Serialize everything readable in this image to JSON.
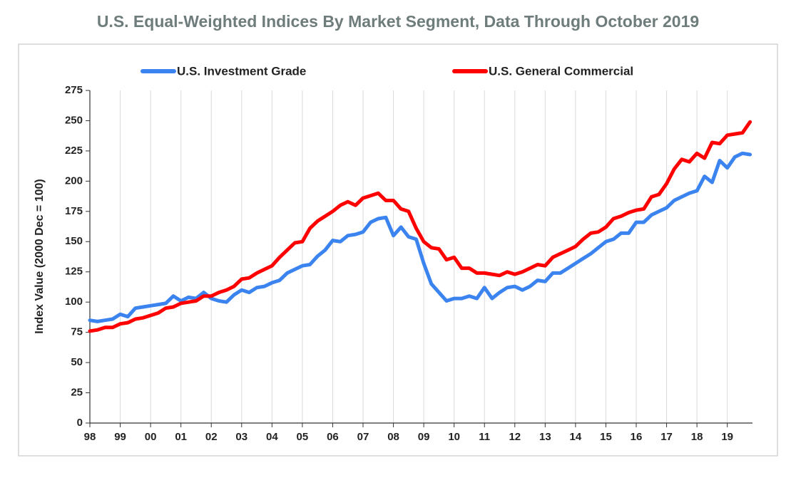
{
  "chart_data": {
    "type": "line",
    "title": "U.S. Equal-Weighted Indices By Market Segment, Data Through October 2019",
    "y_label": "Index Value (2000 Dec = 100)",
    "x": [
      1998,
      1998.25,
      1998.5,
      1998.75,
      1999,
      1999.25,
      1999.5,
      1999.75,
      2000,
      2000.25,
      2000.5,
      2000.75,
      2001,
      2001.25,
      2001.5,
      2001.75,
      2002,
      2002.25,
      2002.5,
      2002.75,
      2003,
      2003.25,
      2003.5,
      2003.75,
      2004,
      2004.25,
      2004.5,
      2004.75,
      2005,
      2005.25,
      2005.5,
      2005.75,
      2006,
      2006.25,
      2006.5,
      2006.75,
      2007,
      2007.25,
      2007.5,
      2007.75,
      2008,
      2008.25,
      2008.5,
      2008.75,
      2009,
      2009.25,
      2009.5,
      2009.75,
      2010,
      2010.25,
      2010.5,
      2010.75,
      2011,
      2011.25,
      2011.5,
      2011.75,
      2012,
      2012.25,
      2012.5,
      2012.75,
      2013,
      2013.25,
      2013.5,
      2013.75,
      2014,
      2014.25,
      2014.5,
      2014.75,
      2015,
      2015.25,
      2015.5,
      2015.75,
      2016,
      2016.25,
      2016.5,
      2016.75,
      2017,
      2017.25,
      2017.5,
      2017.75,
      2018,
      2018.25,
      2018.5,
      2018.75,
      2019,
      2019.25,
      2019.5,
      2019.75
    ],
    "series": [
      {
        "name": "U.S. Investment Grade",
        "color": "#3b84f0",
        "values": [
          85,
          84,
          85,
          86,
          90,
          88,
          95,
          96,
          97,
          98,
          99,
          105,
          101,
          104,
          103,
          108,
          103,
          101,
          100,
          106,
          110,
          108,
          112,
          113,
          116,
          118,
          124,
          127,
          130,
          131,
          138,
          143,
          151,
          150,
          155,
          156,
          158,
          166,
          169,
          170,
          155,
          162,
          154,
          152,
          132,
          115,
          108,
          101,
          103,
          103,
          105,
          103,
          112,
          103,
          108,
          112,
          113,
          110,
          113,
          118,
          117,
          124,
          124,
          128,
          132,
          136,
          140,
          145,
          150,
          152,
          157,
          157,
          166,
          166,
          172,
          175,
          178,
          184,
          187,
          190,
          192,
          204,
          199,
          217,
          211,
          220,
          223,
          222
        ]
      },
      {
        "name": "U.S. General Commercial",
        "color": "#ff0000",
        "values": [
          76,
          77,
          79,
          79,
          82,
          83,
          86,
          87,
          89,
          91,
          95,
          96,
          99,
          100,
          101,
          105,
          105,
          108,
          110,
          113,
          119,
          120,
          124,
          127,
          130,
          137,
          143,
          149,
          150,
          161,
          167,
          171,
          175,
          180,
          183,
          180,
          186,
          188,
          190,
          184,
          184,
          177,
          175,
          161,
          150,
          145,
          144,
          135,
          137,
          128,
          128,
          124,
          124,
          123,
          122,
          125,
          123,
          125,
          128,
          131,
          130,
          137,
          140,
          143,
          146,
          152,
          157,
          158,
          162,
          169,
          171,
          174,
          176,
          177,
          187,
          189,
          198,
          210,
          218,
          216,
          223,
          219,
          232,
          231,
          238,
          239,
          240,
          249
        ]
      }
    ],
    "xlim": [
      1998,
      2019.83
    ],
    "xticks": [
      {
        "value": 1998,
        "label": "98"
      },
      {
        "value": 1999,
        "label": "99"
      },
      {
        "value": 2000,
        "label": "00"
      },
      {
        "value": 2001,
        "label": "01"
      },
      {
        "value": 2002,
        "label": "02"
      },
      {
        "value": 2003,
        "label": "03"
      },
      {
        "value": 2004,
        "label": "04"
      },
      {
        "value": 2005,
        "label": "05"
      },
      {
        "value": 2006,
        "label": "06"
      },
      {
        "value": 2007,
        "label": "07"
      },
      {
        "value": 2008,
        "label": "08"
      },
      {
        "value": 2009,
        "label": "09"
      },
      {
        "value": 2010,
        "label": "10"
      },
      {
        "value": 2011,
        "label": "11"
      },
      {
        "value": 2012,
        "label": "12"
      },
      {
        "value": 2013,
        "label": "13"
      },
      {
        "value": 2014,
        "label": "14"
      },
      {
        "value": 2015,
        "label": "15"
      },
      {
        "value": 2016,
        "label": "16"
      },
      {
        "value": 2017,
        "label": "17"
      },
      {
        "value": 2018,
        "label": "18"
      },
      {
        "value": 2019,
        "label": "19"
      }
    ],
    "ylim": [
      0,
      275
    ],
    "yticks": [
      0,
      25,
      50,
      75,
      100,
      125,
      150,
      175,
      200,
      225,
      250,
      275
    ],
    "grid": "x",
    "legend": "top"
  }
}
